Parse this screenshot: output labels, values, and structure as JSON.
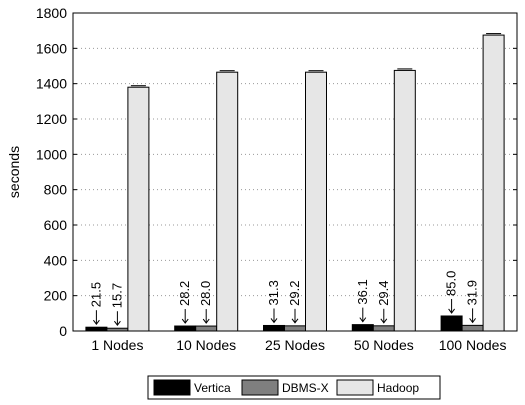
{
  "chart_data": {
    "type": "bar",
    "title": "",
    "xlabel": "",
    "ylabel": "seconds",
    "ylim": [
      0,
      1800
    ],
    "yticks": [
      0,
      200,
      400,
      600,
      800,
      1000,
      1200,
      1400,
      1600,
      1800
    ],
    "grid": "horizontal dotted",
    "legend_position": "bottom",
    "categories": [
      "1 Nodes",
      "10 Nodes",
      "25 Nodes",
      "50 Nodes",
      "100 Nodes"
    ],
    "series": [
      {
        "name": "Vertica",
        "color": "#000000",
        "values": [
          21.5,
          28.2,
          31.3,
          36.1,
          85.0
        ],
        "labels": [
          "21.5",
          "28.2",
          "31.3",
          "36.1",
          "85.0"
        ]
      },
      {
        "name": "DBMS-X",
        "color": "#7f7f7f",
        "values": [
          15.7,
          28.0,
          29.2,
          29.4,
          31.9
        ],
        "labels": [
          "15.7",
          "28.0",
          "29.2",
          "29.4",
          "31.9"
        ]
      },
      {
        "name": "Hadoop",
        "color": "#e6e6e6",
        "values": [
          1380,
          1465,
          1465,
          1475,
          1675
        ],
        "labels": []
      }
    ]
  }
}
